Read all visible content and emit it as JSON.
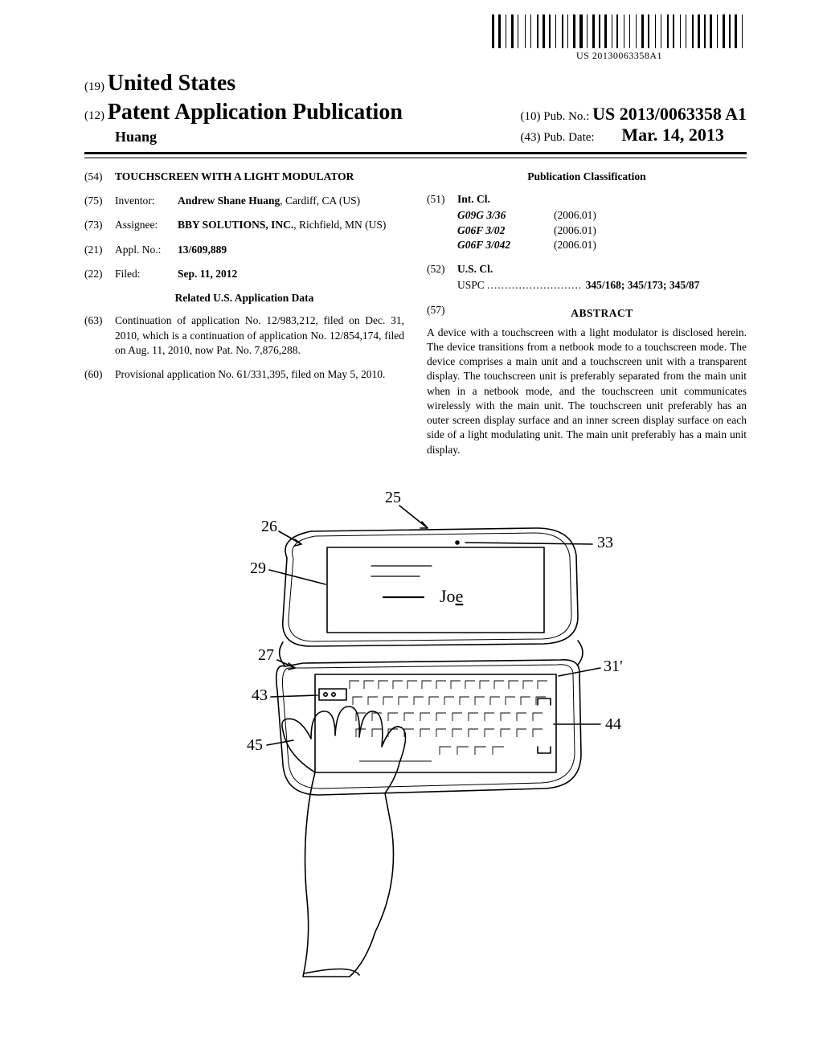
{
  "barcode": {
    "text": "US 20130063358A1",
    "bar_widths": [
      3,
      1,
      3,
      2,
      1,
      2,
      3,
      1,
      1,
      4,
      1,
      2,
      1,
      3,
      2,
      1,
      3,
      1,
      2,
      2,
      1,
      3,
      2,
      1,
      1,
      2,
      3,
      1,
      4,
      1,
      1,
      2,
      3,
      1,
      2,
      1,
      3,
      2,
      1,
      1,
      2,
      3,
      1,
      2,
      1,
      3,
      1,
      2,
      3,
      1,
      2,
      3,
      1,
      2,
      1,
      3,
      2,
      1,
      2,
      3,
      1,
      2,
      1,
      3,
      2,
      1,
      3,
      1,
      2,
      1,
      3,
      2,
      1,
      2,
      3,
      1,
      2,
      1,
      3,
      2,
      1,
      3
    ]
  },
  "header": {
    "country_num": "(19)",
    "country": "United States",
    "kind_num": "(12)",
    "kind": "Patent Application Publication",
    "author": "Huang",
    "pub_no_num": "(10)",
    "pub_no_label": "Pub. No.:",
    "pub_no": "US 2013/0063358 A1",
    "pub_date_num": "(43)",
    "pub_date_label": "Pub. Date:",
    "pub_date": "Mar. 14, 2013"
  },
  "left": {
    "f54_num": "(54)",
    "f54_val": "TOUCHSCREEN WITH A LIGHT MODULATOR",
    "f75_num": "(75)",
    "f75_lab": "Inventor:",
    "f75_val": "Andrew Shane Huang, Cardiff, CA (US)",
    "f75_name": "Andrew Shane Huang",
    "f75_loc": ", Cardiff, CA (US)",
    "f73_num": "(73)",
    "f73_lab": "Assignee:",
    "f73_name": "BBY SOLUTIONS, INC.",
    "f73_loc": ", Richfield, MN (US)",
    "f21_num": "(21)",
    "f21_lab": "Appl. No.:",
    "f21_val": "13/609,889",
    "f22_num": "(22)",
    "f22_lab": "Filed:",
    "f22_val": "Sep. 11, 2012",
    "related_head": "Related U.S. Application Data",
    "f63_num": "(63)",
    "f63_val": "Continuation of application No. 12/983,212, filed on Dec. 31, 2010, which is a continuation of application No. 12/854,174, filed on Aug. 11, 2010, now Pat. No. 7,876,288.",
    "f60_num": "(60)",
    "f60_val": "Provisional application No. 61/331,395, filed on May 5, 2010."
  },
  "right": {
    "class_head": "Publication Classification",
    "f51_num": "(51)",
    "f51_lab": "Int. Cl.",
    "intcl": [
      {
        "code": "G09G 3/36",
        "date": "(2006.01)"
      },
      {
        "code": "G06F 3/02",
        "date": "(2006.01)"
      },
      {
        "code": "G06F 3/042",
        "date": "(2006.01)"
      }
    ],
    "f52_num": "(52)",
    "f52_lab": "U.S. Cl.",
    "uscl_lead": "USPC",
    "uscl_val": "345/168; 345/173; 345/87",
    "f57_num": "(57)",
    "abstract_head": "ABSTRACT",
    "abstract": "A device with a touchscreen with a light modulator is disclosed herein. The device transitions from a netbook mode to a touchscreen mode. The device comprises a main unit and a touchscreen unit with a transparent display. The touchscreen unit is preferably separated from the main unit when in a netbook mode, and the touchscreen unit communicates wirelessly with the main unit. The touchscreen unit preferably has an outer screen display surface and an inner screen display surface on each side of a light modulating unit. The main unit preferably has a main unit display."
  },
  "figure": {
    "labels": [
      "25",
      "26",
      "29",
      "27",
      "43",
      "45",
      "33",
      "31'",
      "44"
    ],
    "screen_text": "Joe",
    "colors": {
      "stroke": "#000000",
      "fill": "#ffffff"
    },
    "line_width": 1.6
  }
}
